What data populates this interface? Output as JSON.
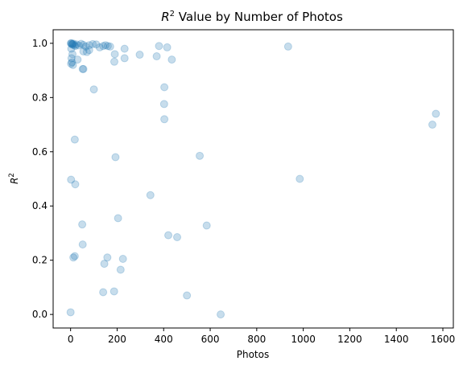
{
  "chart_data": {
    "type": "scatter",
    "title_base": "R",
    "title_sup": "2",
    "title_rest": " Value by Number of Photos",
    "xlabel": "Photos",
    "ylabel_base": "R",
    "ylabel_sup": "2",
    "xlim": [
      -75,
      1645
    ],
    "ylim": [
      -0.05,
      1.05
    ],
    "xticks": [
      0,
      200,
      400,
      600,
      800,
      1000,
      1200,
      1400,
      1600
    ],
    "xtick_labels": [
      "0",
      "200",
      "400",
      "600",
      "800",
      "1000",
      "1200",
      "1400",
      "1600"
    ],
    "yticks": [
      0.0,
      0.2,
      0.4,
      0.6,
      0.8,
      1.0
    ],
    "ytick_labels": [
      "0.0",
      "0.2",
      "0.4",
      "0.6",
      "0.8",
      "1.0"
    ],
    "marker_color": "#1f77b4",
    "marker_alpha": 0.25,
    "grid": false,
    "points": [
      {
        "x": 1,
        "y": 1.0
      },
      {
        "x": 3,
        "y": 1.0
      },
      {
        "x": 5,
        "y": 0.998
      },
      {
        "x": 7,
        "y": 0.995
      },
      {
        "x": 9,
        "y": 0.997
      },
      {
        "x": 12,
        "y": 0.999
      },
      {
        "x": 15,
        "y": 0.993
      },
      {
        "x": 20,
        "y": 0.99
      },
      {
        "x": 25,
        "y": 0.996
      },
      {
        "x": 35,
        "y": 0.992
      },
      {
        "x": 45,
        "y": 0.998
      },
      {
        "x": 55,
        "y": 0.994
      },
      {
        "x": 65,
        "y": 0.988
      },
      {
        "x": 80,
        "y": 0.993
      },
      {
        "x": 95,
        "y": 0.997
      },
      {
        "x": 110,
        "y": 0.996
      },
      {
        "x": 125,
        "y": 0.985
      },
      {
        "x": 140,
        "y": 0.99
      },
      {
        "x": 150,
        "y": 0.993
      },
      {
        "x": 160,
        "y": 0.99
      },
      {
        "x": 170,
        "y": 0.988
      },
      {
        "x": 3,
        "y": 0.98
      },
      {
        "x": 8,
        "y": 0.96
      },
      {
        "x": 4,
        "y": 0.945
      },
      {
        "x": 6,
        "y": 0.93
      },
      {
        "x": 2,
        "y": 0.925
      },
      {
        "x": 10,
        "y": 0.92
      },
      {
        "x": 30,
        "y": 0.94
      },
      {
        "x": 55,
        "y": 0.97
      },
      {
        "x": 70,
        "y": 0.968
      },
      {
        "x": 80,
        "y": 0.975
      },
      {
        "x": 52,
        "y": 0.905
      },
      {
        "x": 55,
        "y": 0.905
      },
      {
        "x": 190,
        "y": 0.96
      },
      {
        "x": 188,
        "y": 0.932
      },
      {
        "x": 232,
        "y": 0.98
      },
      {
        "x": 232,
        "y": 0.945
      },
      {
        "x": 297,
        "y": 0.958
      },
      {
        "x": 380,
        "y": 0.99
      },
      {
        "x": 370,
        "y": 0.952
      },
      {
        "x": 415,
        "y": 0.985
      },
      {
        "x": 435,
        "y": 0.94
      },
      {
        "x": 935,
        "y": 0.988
      },
      {
        "x": 100,
        "y": 0.83
      },
      {
        "x": 403,
        "y": 0.838
      },
      {
        "x": 402,
        "y": 0.776
      },
      {
        "x": 403,
        "y": 0.72
      },
      {
        "x": 1570,
        "y": 0.74
      },
      {
        "x": 1555,
        "y": 0.7
      },
      {
        "x": 18,
        "y": 0.645
      },
      {
        "x": 193,
        "y": 0.58
      },
      {
        "x": 555,
        "y": 0.585
      },
      {
        "x": 985,
        "y": 0.5
      },
      {
        "x": 2,
        "y": 0.497
      },
      {
        "x": 20,
        "y": 0.48
      },
      {
        "x": 343,
        "y": 0.44
      },
      {
        "x": 204,
        "y": 0.355
      },
      {
        "x": 50,
        "y": 0.332
      },
      {
        "x": 585,
        "y": 0.328
      },
      {
        "x": 420,
        "y": 0.292
      },
      {
        "x": 458,
        "y": 0.285
      },
      {
        "x": 52,
        "y": 0.258
      },
      {
        "x": 18,
        "y": 0.215
      },
      {
        "x": 12,
        "y": 0.21
      },
      {
        "x": 158,
        "y": 0.21
      },
      {
        "x": 225,
        "y": 0.205
      },
      {
        "x": 145,
        "y": 0.187
      },
      {
        "x": 215,
        "y": 0.165
      },
      {
        "x": 140,
        "y": 0.082
      },
      {
        "x": 187,
        "y": 0.085
      },
      {
        "x": 500,
        "y": 0.07
      },
      {
        "x": 0,
        "y": 0.008
      },
      {
        "x": 645,
        "y": 0.0
      }
    ]
  }
}
